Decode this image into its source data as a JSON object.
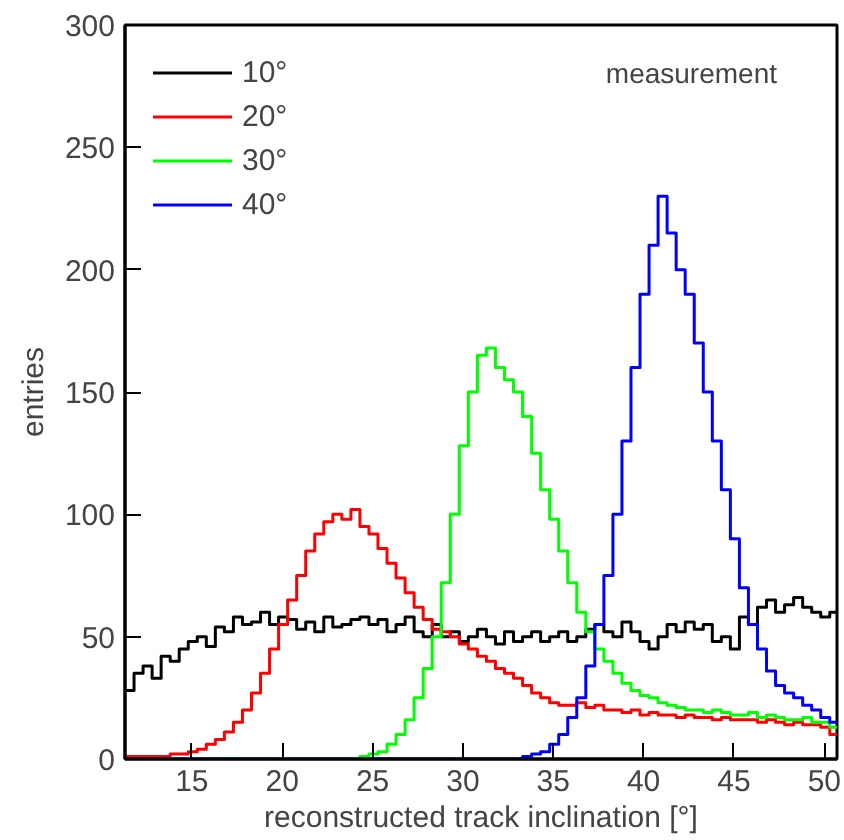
{
  "chart_data": {
    "type": "histogram",
    "xlabel": "reconstructed track inclination [°]",
    "ylabel": "entries",
    "annotations": [
      "measurement"
    ],
    "bins": [
      11.3,
      11.8,
      12.3,
      12.8,
      13.3,
      13.8,
      14.3,
      14.8,
      15.3,
      15.8,
      16.3,
      16.8,
      17.3,
      17.8,
      18.3,
      18.8,
      19.3,
      19.8,
      20.3,
      20.8,
      21.3,
      21.8,
      22.3,
      22.8,
      23.3,
      23.8,
      24.3,
      24.8,
      25.3,
      25.8,
      26.3,
      26.8,
      27.3,
      27.8,
      28.3,
      28.8,
      29.3,
      29.8,
      30.3,
      30.8,
      31.3,
      31.8,
      32.3,
      32.8,
      33.3,
      33.8,
      34.3,
      34.8,
      35.3,
      35.8,
      36.3,
      36.8,
      37.3,
      37.8,
      38.3,
      38.8,
      39.3,
      39.8,
      40.3,
      40.8,
      41.3,
      41.8,
      42.3,
      42.8,
      43.3,
      43.8,
      44.3,
      44.8,
      45.3,
      45.8,
      46.3,
      46.8,
      47.3,
      47.8,
      48.3,
      48.8,
      49.3,
      49.8,
      50.3,
      50.7
    ],
    "series": [
      {
        "name": "10°",
        "color": "#000000",
        "values": [
          28,
          35,
          38,
          33,
          42,
          40,
          45,
          48,
          50,
          46,
          54,
          52,
          58,
          55,
          56,
          60,
          55,
          58,
          57,
          53,
          56,
          52,
          58,
          54,
          55,
          57,
          58,
          55,
          57,
          52,
          55,
          58,
          52,
          50,
          55,
          50,
          52,
          48,
          50,
          53,
          50,
          47,
          52,
          48,
          50,
          52,
          48,
          50,
          52,
          48,
          50,
          53,
          55,
          52,
          50,
          56,
          52,
          48,
          45,
          50,
          55,
          52,
          56,
          53,
          55,
          48,
          50,
          45,
          58,
          55,
          62,
          65,
          60,
          63,
          66,
          62,
          60,
          58,
          60
        ]
      },
      {
        "name": "20°",
        "color": "#ff0000",
        "values": [
          1,
          1,
          1,
          1,
          1,
          2,
          2,
          3,
          4,
          6,
          8,
          11,
          15,
          20,
          27,
          35,
          45,
          55,
          65,
          75,
          85,
          92,
          97,
          100,
          98,
          102,
          95,
          92,
          86,
          80,
          74,
          68,
          62,
          57,
          53,
          52,
          50,
          47,
          45,
          42,
          40,
          37,
          35,
          33,
          30,
          27,
          25,
          23,
          22,
          22,
          23,
          21,
          22,
          20,
          20,
          19,
          20,
          18,
          19,
          18,
          18,
          17,
          18,
          17,
          17,
          16,
          17,
          16,
          16,
          16,
          15,
          16,
          15,
          14,
          15,
          14,
          14,
          13,
          10
        ]
      },
      {
        "name": "30°",
        "color": "#00ff00",
        "values": [
          0,
          0,
          0,
          0,
          0,
          0,
          0,
          0,
          0,
          0,
          0,
          0,
          0,
          0,
          0,
          0,
          0,
          0,
          0,
          0,
          0,
          0,
          0,
          0,
          0,
          0,
          1,
          2,
          3,
          6,
          10,
          16,
          25,
          37,
          50,
          72,
          100,
          128,
          150,
          165,
          168,
          160,
          155,
          150,
          140,
          125,
          110,
          98,
          85,
          72,
          60,
          52,
          45,
          40,
          35,
          31,
          28,
          26,
          25,
          23,
          22,
          21,
          20,
          20,
          19,
          20,
          19,
          18,
          18,
          19,
          17,
          18,
          17,
          16,
          16,
          17,
          15,
          15,
          13
        ]
      },
      {
        "name": "40°",
        "color": "#0000ff",
        "values": [
          0,
          0,
          0,
          0,
          0,
          0,
          0,
          0,
          0,
          0,
          0,
          0,
          0,
          0,
          0,
          0,
          0,
          0,
          0,
          0,
          0,
          0,
          0,
          0,
          0,
          0,
          0,
          0,
          0,
          0,
          0,
          0,
          0,
          0,
          0,
          0,
          0,
          0,
          0,
          0,
          0,
          0,
          0,
          0,
          1,
          2,
          3,
          6,
          10,
          17,
          25,
          38,
          55,
          75,
          100,
          130,
          160,
          190,
          210,
          230,
          215,
          200,
          190,
          170,
          150,
          130,
          110,
          90,
          70,
          55,
          45,
          36,
          30,
          27,
          25,
          22,
          20,
          17,
          15
        ]
      }
    ],
    "xlim": [
      11.3,
      50.7
    ],
    "ylim": [
      0,
      300
    ],
    "xticks": [
      15,
      20,
      25,
      30,
      35,
      40,
      45,
      50
    ],
    "yticks": [
      0,
      50,
      100,
      150,
      200,
      250,
      300
    ],
    "grid": false,
    "legend": "top left"
  }
}
